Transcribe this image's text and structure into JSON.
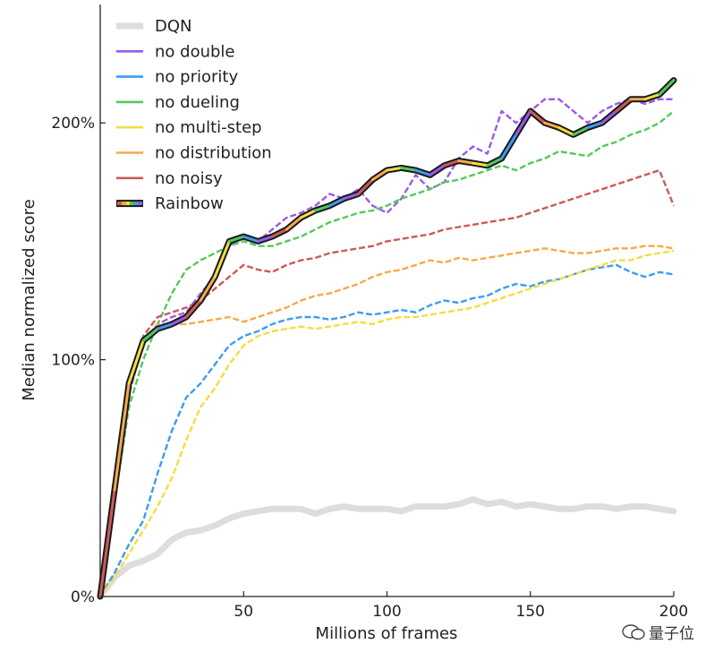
{
  "chart_data": {
    "type": "line",
    "xlabel": "Millions of frames",
    "ylabel": "Median normalized score",
    "xlim": [
      0,
      200
    ],
    "ylim": [
      0,
      250
    ],
    "xticks": [
      50,
      100,
      150,
      200
    ],
    "xtick_labels": [
      "50",
      "100",
      "150",
      "200"
    ],
    "yticks": [
      0,
      100,
      200
    ],
    "ytick_labels": [
      "0%",
      "100%",
      "200%"
    ],
    "grid": false,
    "legend_position": "top-left",
    "series": [
      {
        "name": "DQN",
        "color": "#dddddd",
        "style": "solid-thick",
        "x": [
          0,
          5,
          10,
          15,
          20,
          25,
          30,
          35,
          40,
          45,
          50,
          55,
          60,
          65,
          70,
          75,
          80,
          85,
          90,
          95,
          100,
          105,
          110,
          115,
          120,
          125,
          130,
          135,
          140,
          145,
          150,
          155,
          160,
          165,
          170,
          175,
          180,
          185,
          190,
          195,
          200
        ],
        "y": [
          0,
          8,
          13,
          15,
          18,
          24,
          27,
          28,
          30,
          33,
          35,
          36,
          37,
          37,
          37,
          35,
          37,
          38,
          37,
          37,
          37,
          36,
          38,
          38,
          38,
          39,
          41,
          39,
          40,
          38,
          39,
          38,
          37,
          37,
          38,
          38,
          37,
          38,
          38,
          37,
          36
        ]
      },
      {
        "name": "no double",
        "color": "#9b59ea",
        "style": "dashed",
        "x": [
          0,
          5,
          10,
          15,
          20,
          25,
          30,
          35,
          40,
          45,
          50,
          55,
          60,
          65,
          70,
          75,
          80,
          85,
          90,
          95,
          100,
          105,
          110,
          115,
          120,
          125,
          130,
          135,
          140,
          145,
          150,
          155,
          160,
          165,
          170,
          175,
          180,
          185,
          190,
          195,
          200
        ],
        "y": [
          0,
          40,
          85,
          108,
          115,
          118,
          120,
          128,
          135,
          148,
          152,
          150,
          155,
          160,
          162,
          165,
          170,
          168,
          172,
          165,
          162,
          168,
          178,
          172,
          175,
          185,
          190,
          187,
          205,
          200,
          205,
          210,
          210,
          205,
          200,
          205,
          208,
          210,
          208,
          210,
          210
        ]
      },
      {
        "name": "no priority",
        "color": "#3d9cf0",
        "style": "dashed",
        "x": [
          0,
          5,
          10,
          15,
          20,
          25,
          30,
          35,
          40,
          45,
          50,
          55,
          60,
          65,
          70,
          75,
          80,
          85,
          90,
          95,
          100,
          105,
          110,
          115,
          120,
          125,
          130,
          135,
          140,
          145,
          150,
          155,
          160,
          165,
          170,
          175,
          180,
          185,
          190,
          195,
          200
        ],
        "y": [
          0,
          10,
          22,
          32,
          52,
          70,
          84,
          90,
          98,
          106,
          110,
          112,
          115,
          117,
          118,
          118,
          117,
          118,
          120,
          119,
          120,
          121,
          120,
          123,
          125,
          124,
          126,
          127,
          130,
          132,
          131,
          133,
          134,
          136,
          138,
          139,
          140,
          137,
          135,
          137,
          136
        ]
      },
      {
        "name": "no dueling",
        "color": "#52c95c",
        "style": "dashed",
        "x": [
          0,
          5,
          10,
          15,
          20,
          25,
          30,
          35,
          40,
          45,
          50,
          55,
          60,
          65,
          70,
          75,
          80,
          85,
          90,
          95,
          100,
          105,
          110,
          115,
          120,
          125,
          130,
          135,
          140,
          145,
          150,
          155,
          160,
          165,
          170,
          175,
          180,
          185,
          190,
          195,
          200
        ],
        "y": [
          0,
          40,
          80,
          100,
          115,
          128,
          138,
          142,
          145,
          148,
          150,
          148,
          148,
          150,
          152,
          155,
          158,
          160,
          162,
          163,
          165,
          168,
          170,
          172,
          175,
          176,
          178,
          180,
          182,
          180,
          183,
          185,
          188,
          187,
          186,
          190,
          192,
          195,
          197,
          200,
          205
        ]
      },
      {
        "name": "no multi-step",
        "color": "#f7dc3f",
        "style": "dashed",
        "x": [
          0,
          5,
          10,
          15,
          20,
          25,
          30,
          35,
          40,
          45,
          50,
          55,
          60,
          65,
          70,
          75,
          80,
          85,
          90,
          95,
          100,
          105,
          110,
          115,
          120,
          125,
          130,
          135,
          140,
          145,
          150,
          155,
          160,
          165,
          170,
          175,
          180,
          185,
          190,
          195,
          200
        ],
        "y": [
          0,
          8,
          18,
          28,
          38,
          50,
          66,
          80,
          88,
          98,
          106,
          110,
          112,
          113,
          114,
          113,
          114,
          115,
          116,
          115,
          117,
          118,
          118,
          119,
          120,
          121,
          122,
          124,
          126,
          128,
          130,
          132,
          134,
          136,
          138,
          140,
          142,
          142,
          144,
          145,
          146
        ]
      },
      {
        "name": "no distribution",
        "color": "#f7a94a",
        "style": "dashed",
        "x": [
          0,
          5,
          10,
          15,
          20,
          25,
          30,
          35,
          40,
          45,
          50,
          55,
          60,
          65,
          70,
          75,
          80,
          85,
          90,
          95,
          100,
          105,
          110,
          115,
          120,
          125,
          130,
          135,
          140,
          145,
          150,
          155,
          160,
          165,
          170,
          175,
          180,
          185,
          190,
          195,
          200
        ],
        "y": [
          0,
          45,
          90,
          108,
          115,
          115,
          115,
          116,
          117,
          118,
          116,
          118,
          120,
          122,
          125,
          127,
          128,
          130,
          132,
          135,
          137,
          138,
          140,
          142,
          141,
          143,
          142,
          143,
          144,
          145,
          146,
          147,
          146,
          145,
          145,
          146,
          147,
          147,
          148,
          148,
          147
        ]
      },
      {
        "name": "no noisy",
        "color": "#cc5a5a",
        "style": "dashed",
        "x": [
          0,
          5,
          10,
          15,
          20,
          25,
          30,
          35,
          40,
          45,
          50,
          55,
          60,
          65,
          70,
          75,
          80,
          85,
          90,
          95,
          100,
          105,
          110,
          115,
          120,
          125,
          130,
          135,
          140,
          145,
          150,
          155,
          160,
          165,
          170,
          175,
          180,
          185,
          190,
          195,
          200
        ],
        "y": [
          0,
          45,
          90,
          110,
          118,
          120,
          122,
          125,
          130,
          135,
          140,
          138,
          137,
          140,
          142,
          143,
          145,
          146,
          147,
          148,
          150,
          151,
          152,
          153,
          155,
          156,
          157,
          158,
          159,
          160,
          162,
          164,
          166,
          168,
          170,
          172,
          174,
          176,
          178,
          180,
          165
        ]
      },
      {
        "name": "Rainbow",
        "color": "#000000",
        "style": "rainbow",
        "x": [
          0,
          5,
          10,
          15,
          20,
          25,
          30,
          35,
          40,
          45,
          50,
          55,
          60,
          65,
          70,
          75,
          80,
          85,
          90,
          95,
          100,
          105,
          110,
          115,
          120,
          125,
          130,
          135,
          140,
          145,
          150,
          155,
          160,
          165,
          170,
          175,
          180,
          185,
          190,
          195,
          200
        ],
        "y": [
          0,
          45,
          90,
          108,
          113,
          115,
          118,
          125,
          135,
          150,
          152,
          150,
          152,
          155,
          160,
          163,
          165,
          168,
          170,
          176,
          180,
          181,
          180,
          178,
          182,
          184,
          183,
          182,
          185,
          195,
          205,
          200,
          198,
          195,
          198,
          200,
          205,
          210,
          210,
          212,
          218
        ]
      }
    ]
  },
  "watermark": {
    "text": "量子位"
  }
}
